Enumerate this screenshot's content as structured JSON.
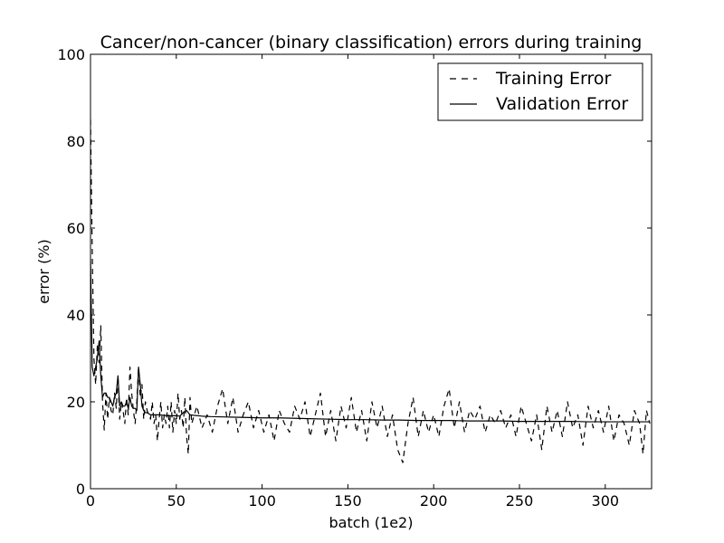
{
  "chart_data": {
    "type": "line",
    "title": "Cancer/non-cancer (binary classification) errors during training",
    "xlabel": "batch (1e2)",
    "ylabel": "error (%)",
    "xlim": [
      0,
      327
    ],
    "ylim": [
      0,
      100
    ],
    "xticks": [
      0,
      50,
      100,
      150,
      200,
      250,
      300
    ],
    "yticks": [
      0,
      20,
      40,
      60,
      80,
      100
    ],
    "grid": false,
    "legend_position": "top-right",
    "series": [
      {
        "name": "Training Error",
        "style": "dashed",
        "color": "#000000",
        "points": [
          [
            0,
            85
          ],
          [
            1,
            55
          ],
          [
            2,
            30
          ],
          [
            3,
            24
          ],
          [
            4,
            33
          ],
          [
            5,
            29
          ],
          [
            6,
            37.5
          ],
          [
            7,
            20
          ],
          [
            8,
            13.5
          ],
          [
            9,
            22
          ],
          [
            10,
            16
          ],
          [
            11,
            21
          ],
          [
            12,
            18
          ],
          [
            13,
            17
          ],
          [
            14,
            22
          ],
          [
            15,
            18.5
          ],
          [
            16,
            26
          ],
          [
            17,
            16
          ],
          [
            18,
            20
          ],
          [
            19,
            18
          ],
          [
            20,
            15
          ],
          [
            21,
            21
          ],
          [
            22,
            17
          ],
          [
            23,
            28
          ],
          [
            24,
            22
          ],
          [
            25,
            18
          ],
          [
            26,
            15
          ],
          [
            27,
            20
          ],
          [
            28,
            28
          ],
          [
            29,
            21
          ],
          [
            30,
            24
          ],
          [
            31,
            16
          ],
          [
            32,
            20
          ],
          [
            33,
            18
          ],
          [
            34,
            17
          ],
          [
            35,
            16
          ],
          [
            36,
            20
          ],
          [
            37,
            15
          ],
          [
            38,
            17
          ],
          [
            39,
            11
          ],
          [
            40,
            16
          ],
          [
            41,
            20
          ],
          [
            42,
            14
          ],
          [
            43,
            17
          ],
          [
            44,
            15
          ],
          [
            45,
            19
          ],
          [
            46,
            14
          ],
          [
            47,
            20
          ],
          [
            48,
            13
          ],
          [
            49,
            18
          ],
          [
            50,
            15
          ],
          [
            51,
            22
          ],
          [
            52,
            16
          ],
          [
            53,
            18
          ],
          [
            54,
            14
          ],
          [
            55,
            21
          ],
          [
            56,
            12
          ],
          [
            57,
            8
          ],
          [
            58,
            21
          ],
          [
            59,
            15
          ],
          [
            62,
            19
          ],
          [
            65,
            14
          ],
          [
            68,
            17
          ],
          [
            71,
            13
          ],
          [
            74,
            19
          ],
          [
            77,
            23
          ],
          [
            80,
            15
          ],
          [
            83,
            21
          ],
          [
            86,
            13
          ],
          [
            89,
            17
          ],
          [
            92,
            20
          ],
          [
            95,
            14
          ],
          [
            98,
            18
          ],
          [
            101,
            13
          ],
          [
            104,
            17
          ],
          [
            107,
            11
          ],
          [
            110,
            18
          ],
          [
            113,
            15
          ],
          [
            116,
            13
          ],
          [
            119,
            19
          ],
          [
            122,
            16
          ],
          [
            125,
            20
          ],
          [
            128,
            12
          ],
          [
            131,
            17
          ],
          [
            134,
            22
          ],
          [
            137,
            12
          ],
          [
            140,
            18
          ],
          [
            143,
            11
          ],
          [
            146,
            19
          ],
          [
            149,
            14
          ],
          [
            152,
            21
          ],
          [
            155,
            13
          ],
          [
            158,
            18
          ],
          [
            161,
            11
          ],
          [
            164,
            20
          ],
          [
            167,
            14
          ],
          [
            170,
            19
          ],
          [
            173,
            12
          ],
          [
            176,
            17
          ],
          [
            179,
            9
          ],
          [
            182,
            6
          ],
          [
            185,
            15
          ],
          [
            188,
            21
          ],
          [
            191,
            12
          ],
          [
            194,
            18
          ],
          [
            197,
            13
          ],
          [
            200,
            17
          ],
          [
            203,
            12
          ],
          [
            206,
            19
          ],
          [
            209,
            23
          ],
          [
            212,
            14
          ],
          [
            215,
            20
          ],
          [
            218,
            13
          ],
          [
            221,
            18
          ],
          [
            224,
            16
          ],
          [
            227,
            19
          ],
          [
            230,
            13
          ],
          [
            233,
            17
          ],
          [
            236,
            15
          ],
          [
            239,
            18
          ],
          [
            242,
            14
          ],
          [
            245,
            17
          ],
          [
            248,
            12
          ],
          [
            251,
            19
          ],
          [
            254,
            15
          ],
          [
            257,
            11
          ],
          [
            260,
            17
          ],
          [
            263,
            9
          ],
          [
            266,
            19
          ],
          [
            269,
            13
          ],
          [
            272,
            18
          ],
          [
            275,
            12
          ],
          [
            278,
            20
          ],
          [
            281,
            14
          ],
          [
            284,
            17
          ],
          [
            287,
            10
          ],
          [
            290,
            19
          ],
          [
            293,
            14
          ],
          [
            296,
            18
          ],
          [
            299,
            13
          ],
          [
            302,
            19
          ],
          [
            305,
            11
          ],
          [
            308,
            17
          ],
          [
            311,
            15
          ],
          [
            314,
            10
          ],
          [
            317,
            18
          ],
          [
            320,
            15
          ],
          [
            322,
            8
          ],
          [
            324,
            18
          ],
          [
            326,
            15
          ]
        ]
      },
      {
        "name": "Validation Error",
        "style": "solid",
        "color": "#000000",
        "points": [
          [
            0,
            53
          ],
          [
            1,
            28
          ],
          [
            2,
            26
          ],
          [
            3,
            28
          ],
          [
            4,
            30
          ],
          [
            5,
            34
          ],
          [
            6,
            26
          ],
          [
            7,
            21
          ],
          [
            8,
            22
          ],
          [
            9,
            22
          ],
          [
            10,
            21
          ],
          [
            11,
            21
          ],
          [
            12,
            20
          ],
          [
            13,
            19
          ],
          [
            14,
            21
          ],
          [
            15,
            22
          ],
          [
            16,
            26
          ],
          [
            17,
            19
          ],
          [
            18,
            20
          ],
          [
            19,
            19
          ],
          [
            20,
            19
          ],
          [
            21,
            20
          ],
          [
            22,
            18.5
          ],
          [
            23,
            21
          ],
          [
            24,
            19
          ],
          [
            25,
            18.5
          ],
          [
            26,
            18.5
          ],
          [
            27,
            18
          ],
          [
            28,
            28
          ],
          [
            29,
            24
          ],
          [
            30,
            19
          ],
          [
            31,
            18
          ],
          [
            32,
            17.5
          ],
          [
            33,
            17.5
          ],
          [
            35,
            17
          ],
          [
            40,
            17
          ],
          [
            45,
            16.8
          ],
          [
            50,
            16.8
          ],
          [
            52,
            16.7
          ],
          [
            54,
            17.5
          ],
          [
            56,
            18
          ],
          [
            58,
            17
          ],
          [
            60,
            16.9
          ],
          [
            65,
            16.7
          ],
          [
            70,
            16.6
          ],
          [
            80,
            16.5
          ],
          [
            90,
            16.4
          ],
          [
            100,
            16.3
          ],
          [
            110,
            16.3
          ],
          [
            120,
            16.2
          ],
          [
            130,
            16.1
          ],
          [
            140,
            16.0
          ],
          [
            150,
            15.9
          ],
          [
            160,
            15.9
          ],
          [
            170,
            15.8
          ],
          [
            180,
            15.8
          ],
          [
            190,
            15.7
          ],
          [
            200,
            15.7
          ],
          [
            210,
            15.7
          ],
          [
            220,
            15.6
          ],
          [
            230,
            15.6
          ],
          [
            240,
            15.6
          ],
          [
            250,
            15.5
          ],
          [
            260,
            15.5
          ],
          [
            270,
            15.5
          ],
          [
            280,
            15.5
          ],
          [
            290,
            15.4
          ],
          [
            300,
            15.4
          ],
          [
            310,
            15.4
          ],
          [
            320,
            15.4
          ],
          [
            326,
            15.4
          ]
        ]
      }
    ]
  }
}
